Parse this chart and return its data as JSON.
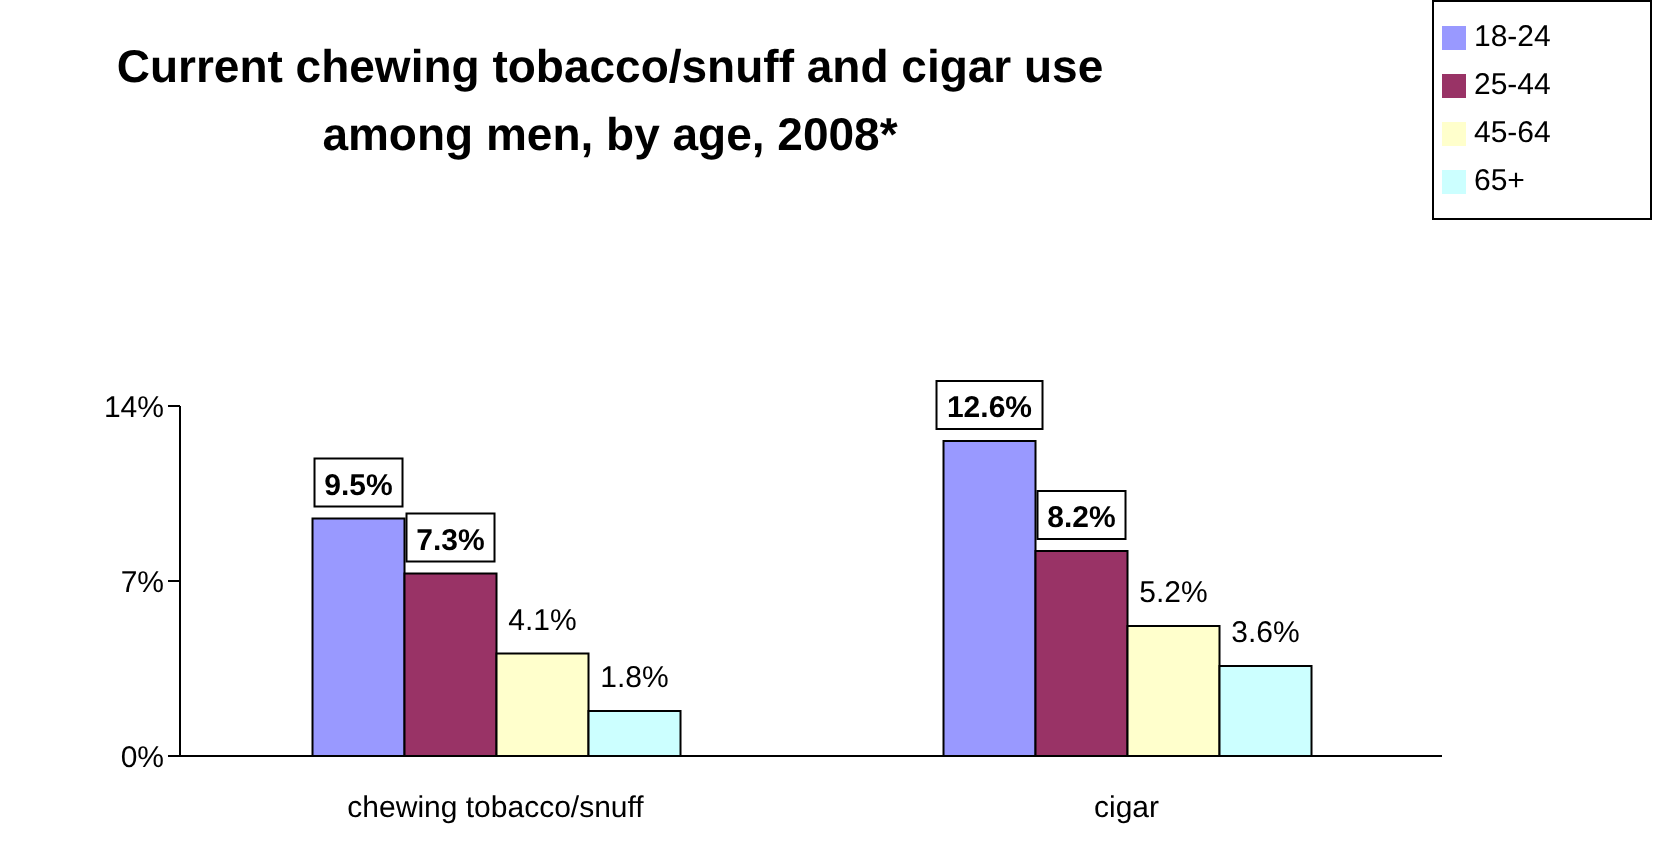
{
  "chart_data": {
    "type": "bar",
    "title": "Current chewing tobacco/snuff and cigar use among men, by age, 2008*",
    "categories": [
      "chewing tobacco/snuff",
      "cigar"
    ],
    "series": [
      {
        "name": "18-24",
        "color": "#9999ff",
        "values": [
          9.5,
          12.6
        ],
        "value_labels": [
          "9.5%",
          "12.6%"
        ]
      },
      {
        "name": "25-44",
        "color": "#993366",
        "values": [
          7.3,
          8.2
        ],
        "value_labels": [
          "7.3%",
          "8.2%"
        ]
      },
      {
        "name": "45-64",
        "color": "#ffffcc",
        "values": [
          4.1,
          5.2
        ],
        "value_labels": [
          "4.1%",
          "5.2%"
        ]
      },
      {
        "name": "65+",
        "color": "#ccffff",
        "values": [
          1.8,
          3.6
        ],
        "value_labels": [
          "1.8%",
          "3.6%"
        ]
      }
    ],
    "ylim": [
      0,
      14
    ],
    "yticks": [
      {
        "value": 0,
        "label": "0%"
      },
      {
        "value": 7,
        "label": "7%"
      },
      {
        "value": 14,
        "label": "14%"
      }
    ],
    "legend": "top right"
  }
}
